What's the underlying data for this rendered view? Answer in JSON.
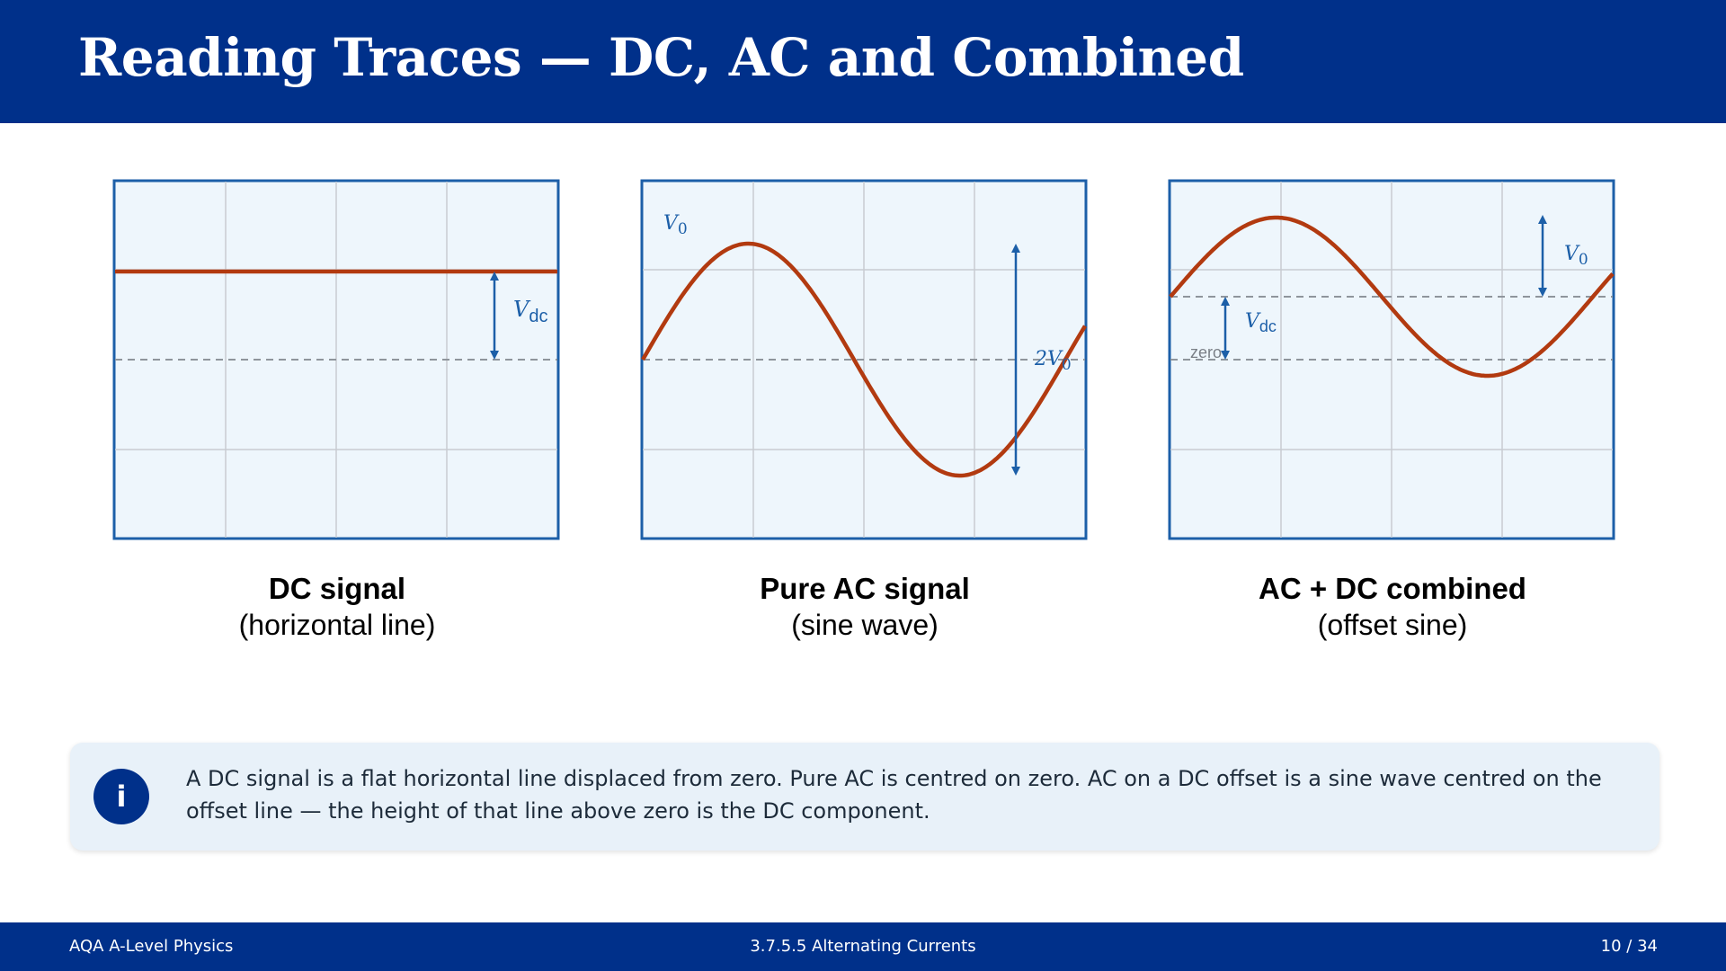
{
  "header": {
    "title": "Reading Traces — DC, AC and Combined"
  },
  "colors": {
    "header_bg": "#00308a",
    "screen_bg": "#eef6fc",
    "screen_border": "#1c5fa8",
    "grid": "#c8ccd2",
    "trace": "#b23a10",
    "annotation": "#1c5fa8",
    "info_bg": "#e8f1f9"
  },
  "panels": [
    {
      "id": "dc",
      "caption_main": "DC signal",
      "caption_sub": "(horizontal line)",
      "labels": {
        "v": "V",
        "sub": "dc"
      }
    },
    {
      "id": "ac",
      "caption_main": "Pure AC signal",
      "caption_sub": "(sine wave)",
      "labels": {
        "v0": "V",
        "v0_sub": "0",
        "pp": "2V",
        "pp_sub": "0"
      }
    },
    {
      "id": "acdc",
      "caption_main": "AC + DC combined",
      "caption_sub": "(offset sine)",
      "labels": {
        "v0": "V",
        "v0_sub": "0",
        "vdc": "V",
        "vdc_sub": "dc",
        "zero": "zero"
      }
    }
  ],
  "info": {
    "icon": "info-icon",
    "text": "A DC signal is a flat horizontal line displaced from zero. Pure AC is centred on zero. AC on a DC offset is a sine wave centred on the offset line — the height of that line above zero is the DC component."
  },
  "footer": {
    "left": "AQA A-Level Physics",
    "center": "3.7.5.5  Alternating Currents",
    "right": "10 / 34"
  }
}
